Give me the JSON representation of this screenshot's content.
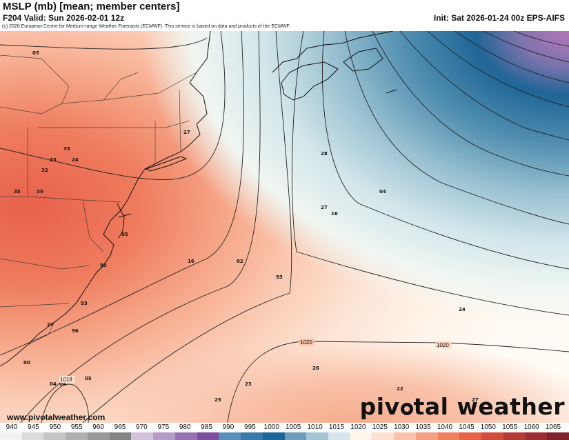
{
  "header": {
    "title": "MSLP (mb) [mean; member centers]",
    "valid": "F204 Valid: Sun 2026-02-01 12z",
    "init": "Init: Sat 2026-01-24 00z EPS-AIFS",
    "copyright": "(c) 2026 European Centre for Medium-range Weather Forecasts (ECMWF). This service is based on data and products of the ECMWF."
  },
  "map": {
    "isobar_labels": [
      "1020",
      "1020",
      "1018"
    ],
    "member_centers": [
      "05",
      "27",
      "35",
      "33",
      "24",
      "32",
      "35",
      "35",
      "95",
      "16",
      "02",
      "93",
      "28",
      "04",
      "27",
      "16",
      "93",
      "93",
      "96",
      "00",
      "04",
      "04",
      "05",
      "26",
      "23",
      "25",
      "22",
      "24",
      "27",
      "27"
    ]
  },
  "footer": {
    "url": "www.pivotalweather.com",
    "brand_left": "piv",
    "brand_right": "tal weather"
  },
  "colorbar": {
    "ticks": [
      "940",
      "945",
      "950",
      "955",
      "960",
      "965",
      "970",
      "975",
      "980",
      "985",
      "990",
      "995",
      "1000",
      "1005",
      "1010",
      "1015",
      "1020",
      "1025",
      "1030",
      "1035",
      "1040",
      "1045",
      "1050",
      "1055",
      "1060",
      "1065"
    ],
    "colors": [
      "#f2f2f2",
      "#dcdcdc",
      "#c6c6c6",
      "#b0b0b0",
      "#9a9a9a",
      "#848484",
      "#d2c3dc",
      "#b59bc8",
      "#9a74b2",
      "#7e4f9c",
      "#5b8fb8",
      "#3a78a8",
      "#1f6596",
      "#6f9db9",
      "#a4c3d3",
      "#d6e6ec",
      "#fff5ea",
      "#fde0cf",
      "#f9c3ab",
      "#f3a084",
      "#ee7f5f",
      "#e6634a",
      "#cf4e3e",
      "#b53d36",
      "#9a2e30",
      "#7f2229"
    ]
  }
}
